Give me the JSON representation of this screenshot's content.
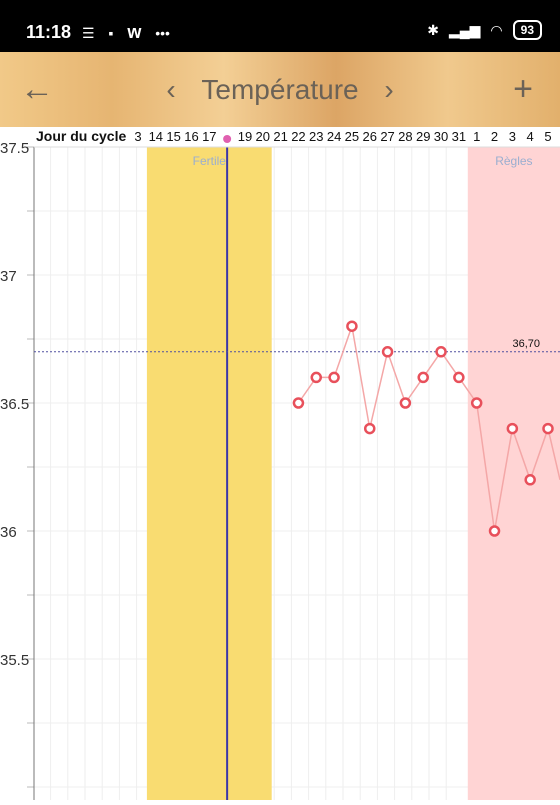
{
  "status_bar": {
    "time": "11:18",
    "battery": "93",
    "icons_left": [
      "message-icon",
      "app-icon",
      "w-icon",
      "more-icon"
    ],
    "icons_right": [
      "bluetooth-icon",
      "signal-icon",
      "wifi-icon",
      "battery-icon"
    ]
  },
  "header": {
    "back_icon": "back-arrow-icon",
    "prev_icon": "chevron-left-icon",
    "title": "Température",
    "next_icon": "chevron-right-icon",
    "add_icon": "plus-icon"
  },
  "colors": {
    "fertile": "#f9dc71",
    "regles": "#ffd4d4",
    "line": "#f4a7a7",
    "point": "#e8505b",
    "today_line": "#3b36a8",
    "today_dot": "#e060b0",
    "coverline": "#5050a0"
  },
  "chart_data": {
    "type": "line",
    "title": "",
    "xlabel": "Jour du cycle",
    "ylabel": "",
    "ylim": [
      35.0,
      37.5
    ],
    "y_ticks": [
      "37.5",
      "37",
      "36.5",
      "36",
      "35.5"
    ],
    "x_labels": [
      "3",
      "14",
      "15",
      "16",
      "17",
      "",
      "19",
      "20",
      "21",
      "22",
      "23",
      "24",
      "25",
      "26",
      "27",
      "28",
      "29",
      "30",
      "31",
      "1",
      "2",
      "3",
      "4",
      "5"
    ],
    "bands": [
      {
        "label": "Fertile",
        "from": "14",
        "to": "20"
      },
      {
        "label": "Règles",
        "from": "1",
        "to": "5"
      }
    ],
    "coverline": {
      "value": 36.7,
      "label": "36,70"
    },
    "today_marker": "18",
    "series": [
      {
        "x": [
          "22",
          "23",
          "24",
          "25",
          "26",
          "27",
          "28",
          "29",
          "30",
          "31",
          "1",
          "2",
          "3",
          "4",
          "5"
        ],
        "values": [
          36.5,
          36.6,
          36.6,
          36.8,
          36.4,
          36.7,
          36.5,
          36.6,
          36.7,
          36.6,
          36.5,
          36.0,
          36.4,
          36.2,
          36.4
        ]
      }
    ]
  }
}
